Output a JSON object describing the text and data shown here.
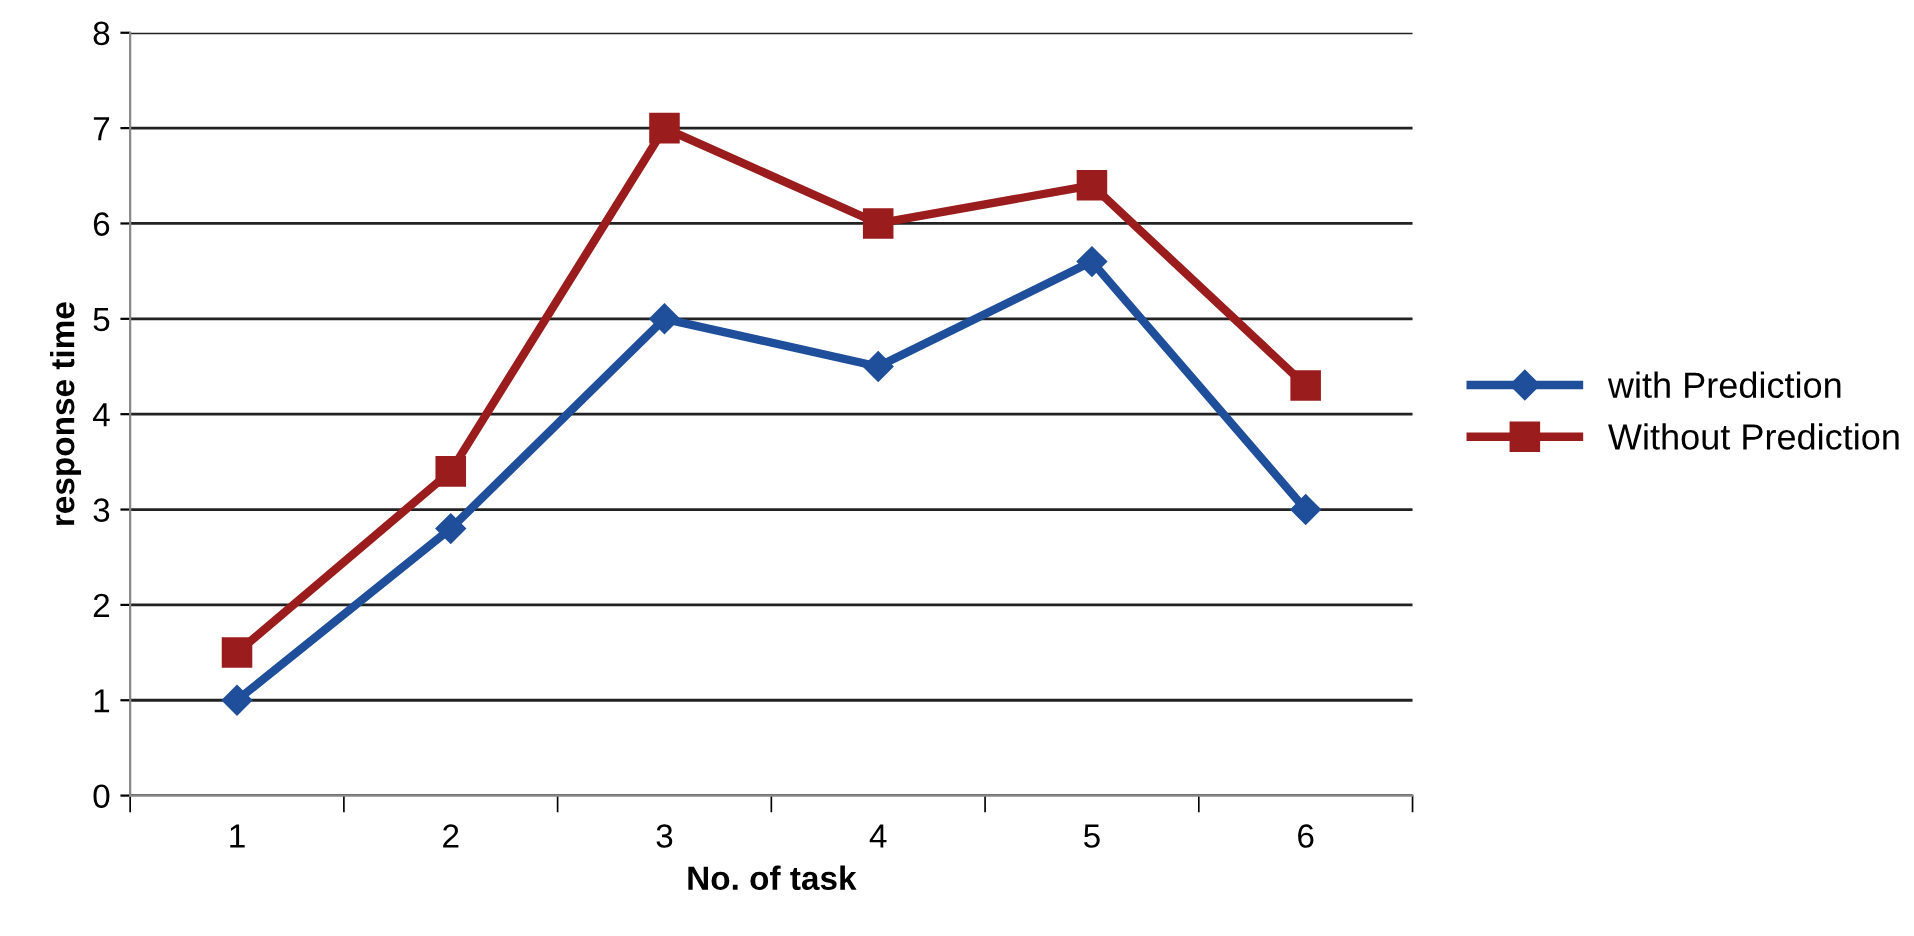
{
  "chart_data": {
    "type": "line",
    "xlabel": "No. of task",
    "ylabel": "response time",
    "categories": [
      "1",
      "2",
      "3",
      "4",
      "5",
      "6"
    ],
    "series": [
      {
        "name": "with Prediction",
        "color": "#1f4e9a",
        "marker": "diamond",
        "values": [
          1,
          2.8,
          5,
          4.5,
          5.6,
          3
        ]
      },
      {
        "name": "Without Prediction",
        "color": "#9b1c1c",
        "marker": "square",
        "values": [
          1.5,
          3.4,
          7,
          6,
          6.4,
          4.3
        ]
      }
    ],
    "ylim": [
      0,
      8
    ],
    "yticks": [
      0,
      1,
      2,
      3,
      4,
      5,
      6,
      7,
      8
    ],
    "grid": "y",
    "legend": "right",
    "line_style": "solid"
  }
}
